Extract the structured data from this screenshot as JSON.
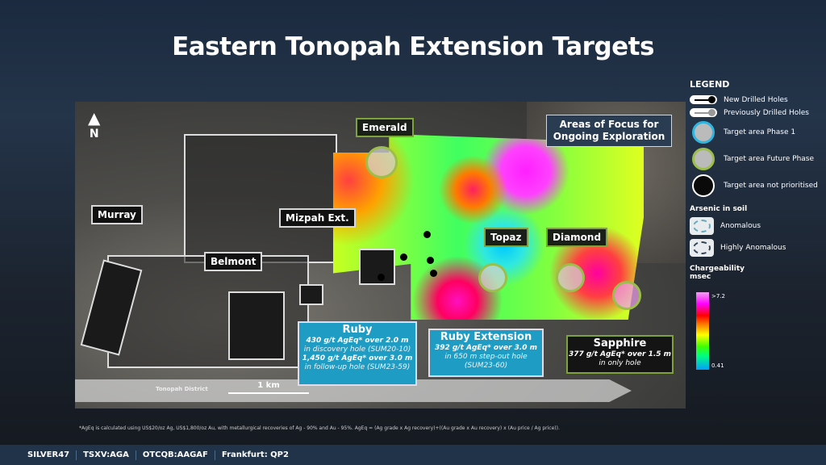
{
  "title": "Eastern Tonopah Extension Targets",
  "map": {
    "north": "N",
    "focus_title": "Areas of Focus for Ongoing Exploration",
    "targets": {
      "emerald": "Emerald",
      "murray": "Murray",
      "mizpah": "Mizpah Ext.",
      "belmont": "Belmont",
      "topaz": "Topaz",
      "diamond": "Diamond"
    },
    "ruby": {
      "title": "Ruby",
      "l1": "430 g/t AgEq* over 2.0 m",
      "l2": "in discovery hole (SUM20-10)",
      "l3": "1,450 g/t AgEq* over 3.0 m",
      "l4": "in follow-up hole (SUM23-59)"
    },
    "ruby_ext": {
      "title": "Ruby Extension",
      "l1": "392 g/t AgEq* over 3.0 m",
      "l2": "in 650 m step-out hole",
      "l3": "(SUM23-60)"
    },
    "sapphire": {
      "title": "Sapphire",
      "l1": "377 g/t AgEq* over 1.5 m",
      "l2": "in only hole"
    },
    "district": "Tonopah District",
    "scale": "1 km"
  },
  "legend": {
    "title": "LEGEND",
    "items": [
      "New Drilled Holes",
      "Previously Drilled Holes",
      "Target area Phase 1",
      "Target area Future Phase",
      "Target area not prioritised"
    ],
    "arsenic_title": "Arsenic in soil",
    "arsenic": [
      "Anomalous",
      "Highly Anomalous"
    ],
    "charge_title": "Chargeability msec",
    "charge_max": ">7.2",
    "charge_min": "0.41",
    "colors": {
      "phase1": "#2fb6e0",
      "future": "#9bbf4a"
    }
  },
  "footnote": "*AgEq is calculated using US$20/oz Ag, US$1,800/oz Au, with metallurgical recoveries of Ag - 90% and Au - 95%. AgEq = (Ag grade x Ag recovery)+((Au grade x Au recovery) x (Au price / Ag price)).",
  "bottom_bar": [
    "SILVER47",
    "TSXV:AGA",
    "OTCQB:AAGAF",
    "Frankfurt: QP2"
  ]
}
